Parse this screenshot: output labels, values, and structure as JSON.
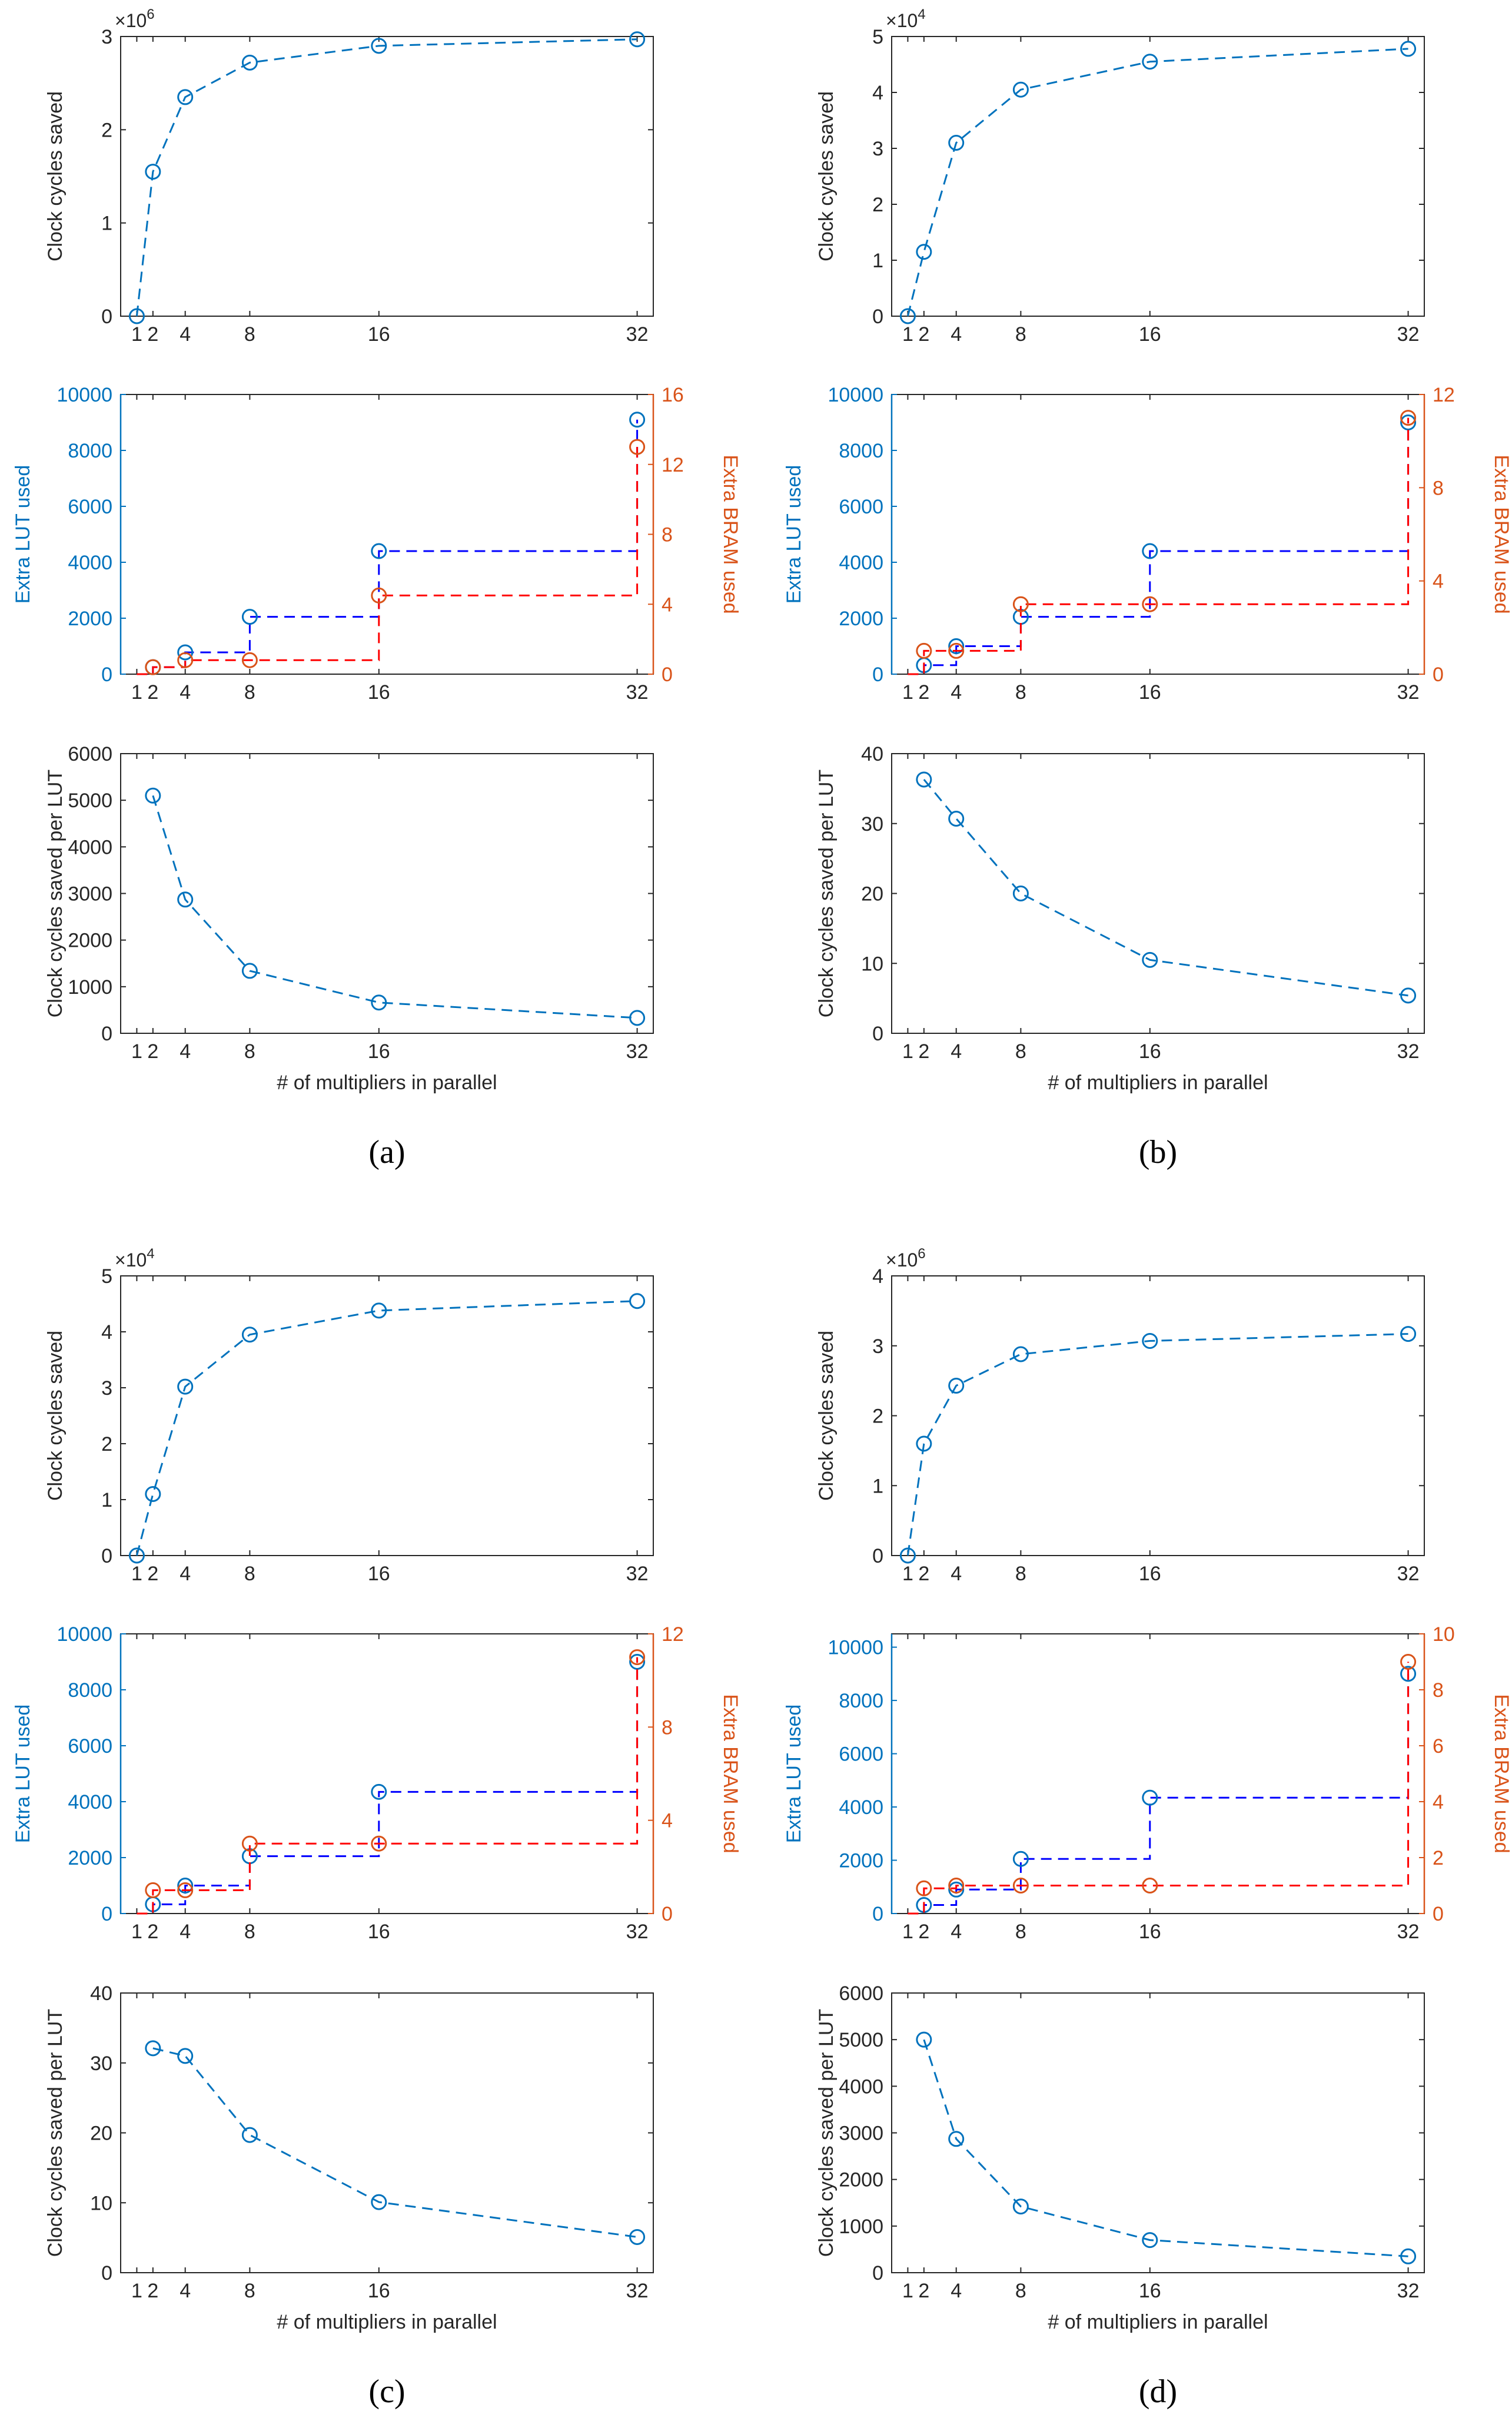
{
  "colors": {
    "blue": "#0072BD",
    "dark_blue": "#0000FF",
    "red": "#FF0000",
    "orange": "#D95319",
    "axis": "#262626"
  },
  "chart_data": [
    {
      "panel": "(a)",
      "x": [
        1,
        2,
        4,
        8,
        16,
        32
      ],
      "xticks": [
        1,
        2,
        4,
        8,
        16,
        32
      ],
      "xlabel": "# of multipliers in parallel",
      "charts": [
        {
          "type": "line",
          "ylabel": "Clock cycles saved",
          "ylim": [
            0,
            3
          ],
          "yticks": [
            0,
            1,
            2,
            3
          ],
          "exponent": "×10",
          "exponent_power": "6",
          "series": [
            {
              "name": "Clock cycles saved",
              "values": [
                0,
                1.55,
                2.35,
                2.72,
                2.9,
                2.97
              ]
            }
          ]
        },
        {
          "type": "step",
          "ylabel": "Extra LUT used",
          "y2label": "Extra BRAM used",
          "ylim": [
            0,
            10000
          ],
          "yticks": [
            0,
            2000,
            4000,
            6000,
            8000,
            10000
          ],
          "y2lim": [
            0,
            16
          ],
          "y2ticks": [
            0,
            4,
            8,
            12,
            16
          ],
          "series": [
            {
              "name": "Extra LUT used",
              "axis": "left",
              "values": [
                0,
                250,
                780,
                2050,
                4400,
                9100
              ]
            },
            {
              "name": "Extra BRAM used",
              "axis": "right",
              "values": [
                0,
                0.4,
                0.8,
                0.8,
                4.5,
                13
              ]
            }
          ]
        },
        {
          "type": "line",
          "ylabel": "Clock cycles saved per LUT",
          "ylim": [
            0,
            6000
          ],
          "yticks": [
            0,
            1000,
            2000,
            3000,
            4000,
            5000,
            6000
          ],
          "series": [
            {
              "name": "Clock cycles saved per LUT",
              "values": [
                null,
                5100,
                2870,
                1340,
                660,
                330
              ]
            }
          ]
        }
      ]
    },
    {
      "panel": "(b)",
      "x": [
        1,
        2,
        4,
        8,
        16,
        32
      ],
      "xticks": [
        1,
        2,
        4,
        8,
        16,
        32
      ],
      "xlabel": "# of multipliers in parallel",
      "charts": [
        {
          "type": "line",
          "ylabel": "Clock cycles saved",
          "ylim": [
            0,
            5
          ],
          "yticks": [
            0,
            1,
            2,
            3,
            4,
            5
          ],
          "exponent": "×10",
          "exponent_power": "4",
          "series": [
            {
              "name": "Clock cycles saved",
              "values": [
                0,
                1.15,
                3.1,
                4.05,
                4.55,
                4.78
              ]
            }
          ]
        },
        {
          "type": "step",
          "ylabel": "Extra LUT used",
          "y2label": "Extra BRAM used",
          "ylim": [
            0,
            10000
          ],
          "yticks": [
            0,
            2000,
            4000,
            6000,
            8000,
            10000
          ],
          "y2lim": [
            0,
            12
          ],
          "y2ticks": [
            0,
            4,
            8,
            12
          ],
          "series": [
            {
              "name": "Extra LUT used",
              "axis": "left",
              "values": [
                0,
                320,
                1000,
                2050,
                4400,
                9000
              ]
            },
            {
              "name": "Extra BRAM used",
              "axis": "right",
              "values": [
                0,
                1,
                1,
                3,
                3,
                11
              ]
            }
          ]
        },
        {
          "type": "line",
          "ylabel": "Clock cycles saved per LUT",
          "ylim": [
            0,
            40
          ],
          "yticks": [
            0,
            10,
            20,
            30,
            40
          ],
          "series": [
            {
              "name": "Clock cycles saved per LUT",
              "values": [
                null,
                36.3,
                30.7,
                20,
                10.5,
                5.4
              ]
            }
          ]
        }
      ]
    },
    {
      "panel": "(c)",
      "x": [
        1,
        2,
        4,
        8,
        16,
        32
      ],
      "xticks": [
        1,
        2,
        4,
        8,
        16,
        32
      ],
      "xlabel": "# of multipliers in parallel",
      "charts": [
        {
          "type": "line",
          "ylabel": "Clock cycles saved",
          "ylim": [
            0,
            5
          ],
          "yticks": [
            0,
            1,
            2,
            3,
            4,
            5
          ],
          "exponent": "×10",
          "exponent_power": "4",
          "series": [
            {
              "name": "Clock cycles saved",
              "values": [
                0,
                1.1,
                3.02,
                3.95,
                4.38,
                4.55
              ]
            }
          ]
        },
        {
          "type": "step",
          "ylabel": "Extra LUT used",
          "y2label": "Extra BRAM used",
          "ylim": [
            0,
            10000
          ],
          "yticks": [
            0,
            2000,
            4000,
            6000,
            8000,
            10000
          ],
          "y2lim": [
            0,
            12
          ],
          "y2ticks": [
            0,
            4,
            8,
            12
          ],
          "series": [
            {
              "name": "Extra LUT used",
              "axis": "left",
              "values": [
                0,
                330,
                1000,
                2050,
                4350,
                9000
              ]
            },
            {
              "name": "Extra BRAM used",
              "axis": "right",
              "values": [
                0,
                1,
                1,
                3,
                3,
                11
              ]
            }
          ]
        },
        {
          "type": "line",
          "ylabel": "Clock cycles saved per LUT",
          "ylim": [
            0,
            40
          ],
          "yticks": [
            0,
            10,
            20,
            30,
            40
          ],
          "series": [
            {
              "name": "Clock cycles saved per LUT",
              "values": [
                null,
                32.1,
                31,
                19.7,
                10.1,
                5.1
              ]
            }
          ]
        }
      ]
    },
    {
      "panel": "(d)",
      "x": [
        1,
        2,
        4,
        8,
        16,
        32
      ],
      "xticks": [
        1,
        2,
        4,
        8,
        16,
        32
      ],
      "xlabel": "# of multipliers in parallel",
      "charts": [
        {
          "type": "line",
          "ylabel": "Clock cycles saved",
          "ylim": [
            0,
            4
          ],
          "yticks": [
            0,
            1,
            2,
            3,
            4
          ],
          "exponent": "×10",
          "exponent_power": "6",
          "series": [
            {
              "name": "Clock cycles saved",
              "values": [
                0,
                1.6,
                2.43,
                2.88,
                3.07,
                3.17
              ]
            }
          ]
        },
        {
          "type": "step",
          "ylabel": "Extra LUT used",
          "y2label": "Extra BRAM used",
          "ylim": [
            0,
            10500
          ],
          "yticks": [
            0,
            2000,
            4000,
            6000,
            8000,
            10000
          ],
          "y2lim": [
            0,
            10
          ],
          "y2ticks": [
            0,
            2,
            4,
            6,
            8,
            10
          ],
          "series": [
            {
              "name": "Extra LUT used",
              "axis": "left",
              "values": [
                0,
                320,
                900,
                2050,
                4350,
                9000
              ]
            },
            {
              "name": "Extra BRAM used",
              "axis": "right",
              "values": [
                0,
                0.9,
                1,
                1,
                1,
                9
              ]
            }
          ]
        },
        {
          "type": "line",
          "ylabel": "Clock cycles saved per LUT",
          "ylim": [
            0,
            6000
          ],
          "yticks": [
            0,
            1000,
            2000,
            3000,
            4000,
            5000,
            6000
          ],
          "series": [
            {
              "name": "Clock cycles saved per LUT",
              "values": [
                null,
                5000,
                2870,
                1420,
                700,
                350
              ]
            }
          ]
        }
      ]
    }
  ]
}
